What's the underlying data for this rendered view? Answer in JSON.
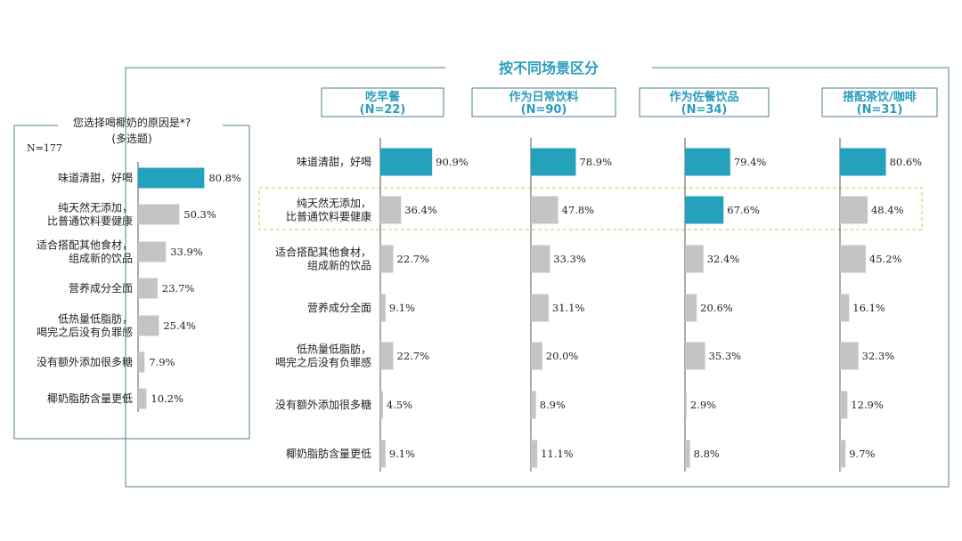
{
  "left_panel": {
    "question": "您选择喝椰奶的原因是*?",
    "question_sub": "(多选题)",
    "n_label": "N=177"
  },
  "right_panel": {
    "title": "按不同场景区分"
  },
  "colors": {
    "highlight": "#25a2bb",
    "bar": "#c4c4c4",
    "frame": "#4f7f8f",
    "header": "#2a9dbc",
    "dashed": "#e2c05a"
  },
  "chart_data": [
    {
      "type": "bar",
      "orientation": "horizontal",
      "categories": [
        "味道清甜，好喝",
        "纯天然无添加，\n比普通饮料要健康",
        "适合搭配其他食材，\n组成新的饮品",
        "营养成分全面",
        "低热量低脂肪，\n喝完之后没有负罪感",
        "没有额外添加很多糖",
        "椰奶脂肪含量更低"
      ],
      "values": [
        80.8,
        50.3,
        33.9,
        23.7,
        25.4,
        7.9,
        10.2
      ],
      "labels": [
        "80.8%",
        "50.3%",
        "33.9%",
        "23.7%",
        "25.4%",
        "7.9%",
        "10.2%"
      ],
      "highlighted": [
        0
      ]
    },
    {
      "type": "bar",
      "orientation": "horizontal",
      "categories": [
        "味道清甜，好喝",
        "纯天然无添加，\n比普通饮料要健康",
        "适合搭配其他食材，\n组成新的饮品",
        "营养成分全面",
        "低热量低脂肪，\n喝完之后没有负罪感",
        "没有额外添加很多糖",
        "椰奶脂肪含量更低"
      ],
      "series": [
        {
          "name": "吃早餐",
          "n": "(N=22)",
          "values": [
            90.9,
            36.4,
            22.7,
            9.1,
            22.7,
            4.5,
            9.1
          ],
          "labels": [
            "90.9%",
            "36.4%",
            "22.7%",
            "9.1%",
            "22.7%",
            "4.5%",
            "9.1%"
          ],
          "highlighted": [
            0
          ]
        },
        {
          "name": "作为日常饮料",
          "n": "(N=90)",
          "values": [
            78.9,
            47.8,
            33.3,
            31.1,
            20.0,
            8.9,
            11.1
          ],
          "labels": [
            "78.9%",
            "47.8%",
            "33.3%",
            "31.1%",
            "20.0%",
            "8.9%",
            "11.1%"
          ],
          "highlighted": [
            0
          ]
        },
        {
          "name": "作为佐餐饮品",
          "n": "(N=34)",
          "values": [
            79.4,
            67.6,
            32.4,
            20.6,
            35.3,
            2.9,
            8.8
          ],
          "labels": [
            "79.4%",
            "67.6%",
            "32.4%",
            "20.6%",
            "35.3%",
            "2.9%",
            "8.8%"
          ],
          "highlighted": [
            0,
            1
          ]
        },
        {
          "name": "搭配茶饮/咖啡",
          "n": "(N=31)",
          "values": [
            80.6,
            48.4,
            45.2,
            16.1,
            32.3,
            12.9,
            9.7
          ],
          "labels": [
            "80.6%",
            "48.4%",
            "45.2%",
            "16.1%",
            "32.3%",
            "12.9%",
            "9.7%"
          ],
          "highlighted": [
            0
          ]
        }
      ]
    }
  ]
}
